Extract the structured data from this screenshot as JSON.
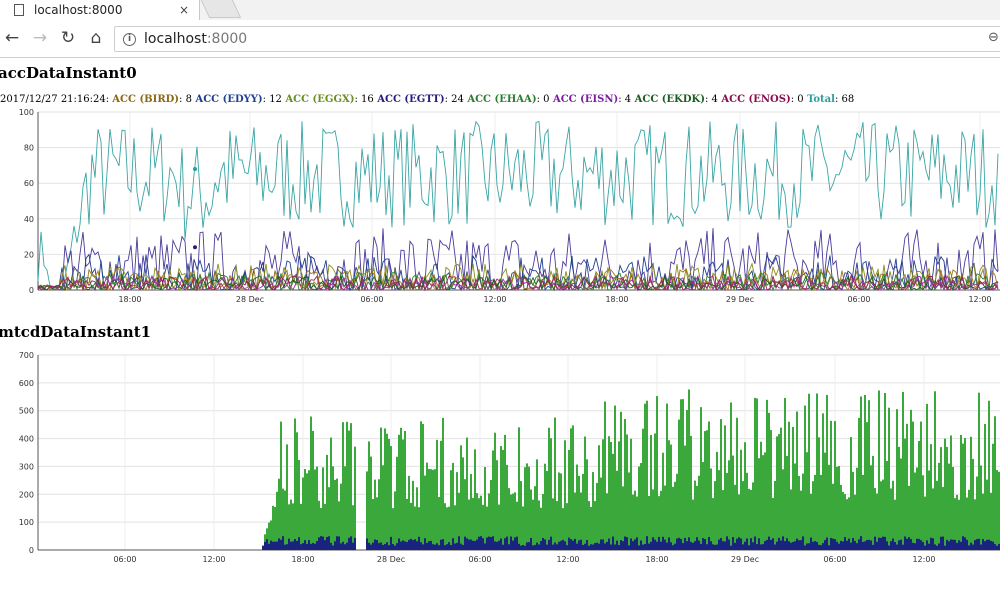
{
  "browser": {
    "tab_title": "localhost:8000",
    "url_host": "localhost",
    "url_port": ":8000",
    "tab_close": "×"
  },
  "chart1": {
    "title": "accDataInstant0",
    "legend": {
      "timestamp": "2017/12/27 21:16:24:",
      "items": [
        {
          "label": "ACC (BIRD)",
          "value": "8",
          "color": "#8b6914"
        },
        {
          "label": "ACC (EDYY)",
          "value": "12",
          "color": "#1f3f8f"
        },
        {
          "label": "ACC (EGGX)",
          "value": "16",
          "color": "#6b8e23"
        },
        {
          "label": "ACC (EGTT)",
          "value": "24",
          "color": "#27207a"
        },
        {
          "label": "ACC (EHAA)",
          "value": "0",
          "color": "#2e7d32"
        },
        {
          "label": "ACC (EISN)",
          "value": "4",
          "color": "#7b1fa2"
        },
        {
          "label": "ACC (EKDK)",
          "value": "4",
          "color": "#1b5e20"
        },
        {
          "label": "ACC (ENOS)",
          "value": "0",
          "color": "#880e4f"
        }
      ],
      "total_label": "Total",
      "total_value": "68",
      "total_color": "#2a9d9d"
    },
    "y_ticks": [
      "0",
      "20",
      "40",
      "60",
      "80",
      "100"
    ],
    "x_ticks": [
      "18:00",
      "28 Dec",
      "06:00",
      "12:00",
      "18:00",
      "29 Dec",
      "06:00",
      "12:00"
    ]
  },
  "chart2": {
    "title": "mtcdDataInstant1",
    "y_ticks": [
      "0",
      "100",
      "200",
      "300",
      "400",
      "500",
      "600",
      "700"
    ],
    "x_ticks": [
      "06:00",
      "12:00",
      "18:00",
      "28 Dec",
      "06:00",
      "12:00",
      "18:00",
      "29 Dec",
      "06:00",
      "12:00"
    ],
    "series_colors": {
      "total": "#3aa83a",
      "low": "#1a237e"
    }
  },
  "chart_data": [
    {
      "type": "line",
      "title": "accDataInstant0",
      "ylim": [
        0,
        100
      ],
      "x_ticks": [
        "18:00",
        "28 Dec",
        "06:00",
        "12:00",
        "18:00",
        "29 Dec",
        "06:00",
        "12:00"
      ],
      "grid": true,
      "series": [
        {
          "name": "Total",
          "color": "#3aa5a5",
          "typical_range": [
            35,
            95
          ]
        },
        {
          "name": "ACC (EGTT)",
          "color": "#4b3b9a",
          "typical_range": [
            0,
            35
          ]
        },
        {
          "name": "ACC (EDYY)",
          "color": "#1f3f8f",
          "typical_range": [
            0,
            20
          ]
        },
        {
          "name": "ACC (EGGX)",
          "color": "#8b8b1a",
          "typical_range": [
            0,
            15
          ]
        },
        {
          "name": "ACC (BIRD)",
          "color": "#a0751a",
          "typical_range": [
            0,
            12
          ]
        },
        {
          "name": "ACC (EHAA)",
          "color": "#2e7d32",
          "typical_range": [
            0,
            10
          ]
        },
        {
          "name": "ACC (EISN)",
          "color": "#9c2fa8",
          "typical_range": [
            0,
            8
          ]
        },
        {
          "name": "ACC (EKDK)",
          "color": "#1b5e20",
          "typical_range": [
            0,
            8
          ]
        },
        {
          "name": "ACC (ENOS)",
          "color": "#a0245a",
          "typical_range": [
            0,
            8
          ]
        }
      ]
    },
    {
      "type": "bar",
      "title": "mtcdDataInstant1",
      "ylim": [
        0,
        700
      ],
      "x_ticks": [
        "06:00",
        "12:00",
        "18:00",
        "28 Dec",
        "06:00",
        "12:00",
        "18:00",
        "29 Dec",
        "06:00",
        "12:00"
      ],
      "grid": true,
      "series": [
        {
          "color": "#3aa83a",
          "typical_range": [
            150,
            600
          ]
        },
        {
          "color": "#1a237e",
          "typical_range": [
            0,
            50
          ]
        }
      ]
    }
  ]
}
